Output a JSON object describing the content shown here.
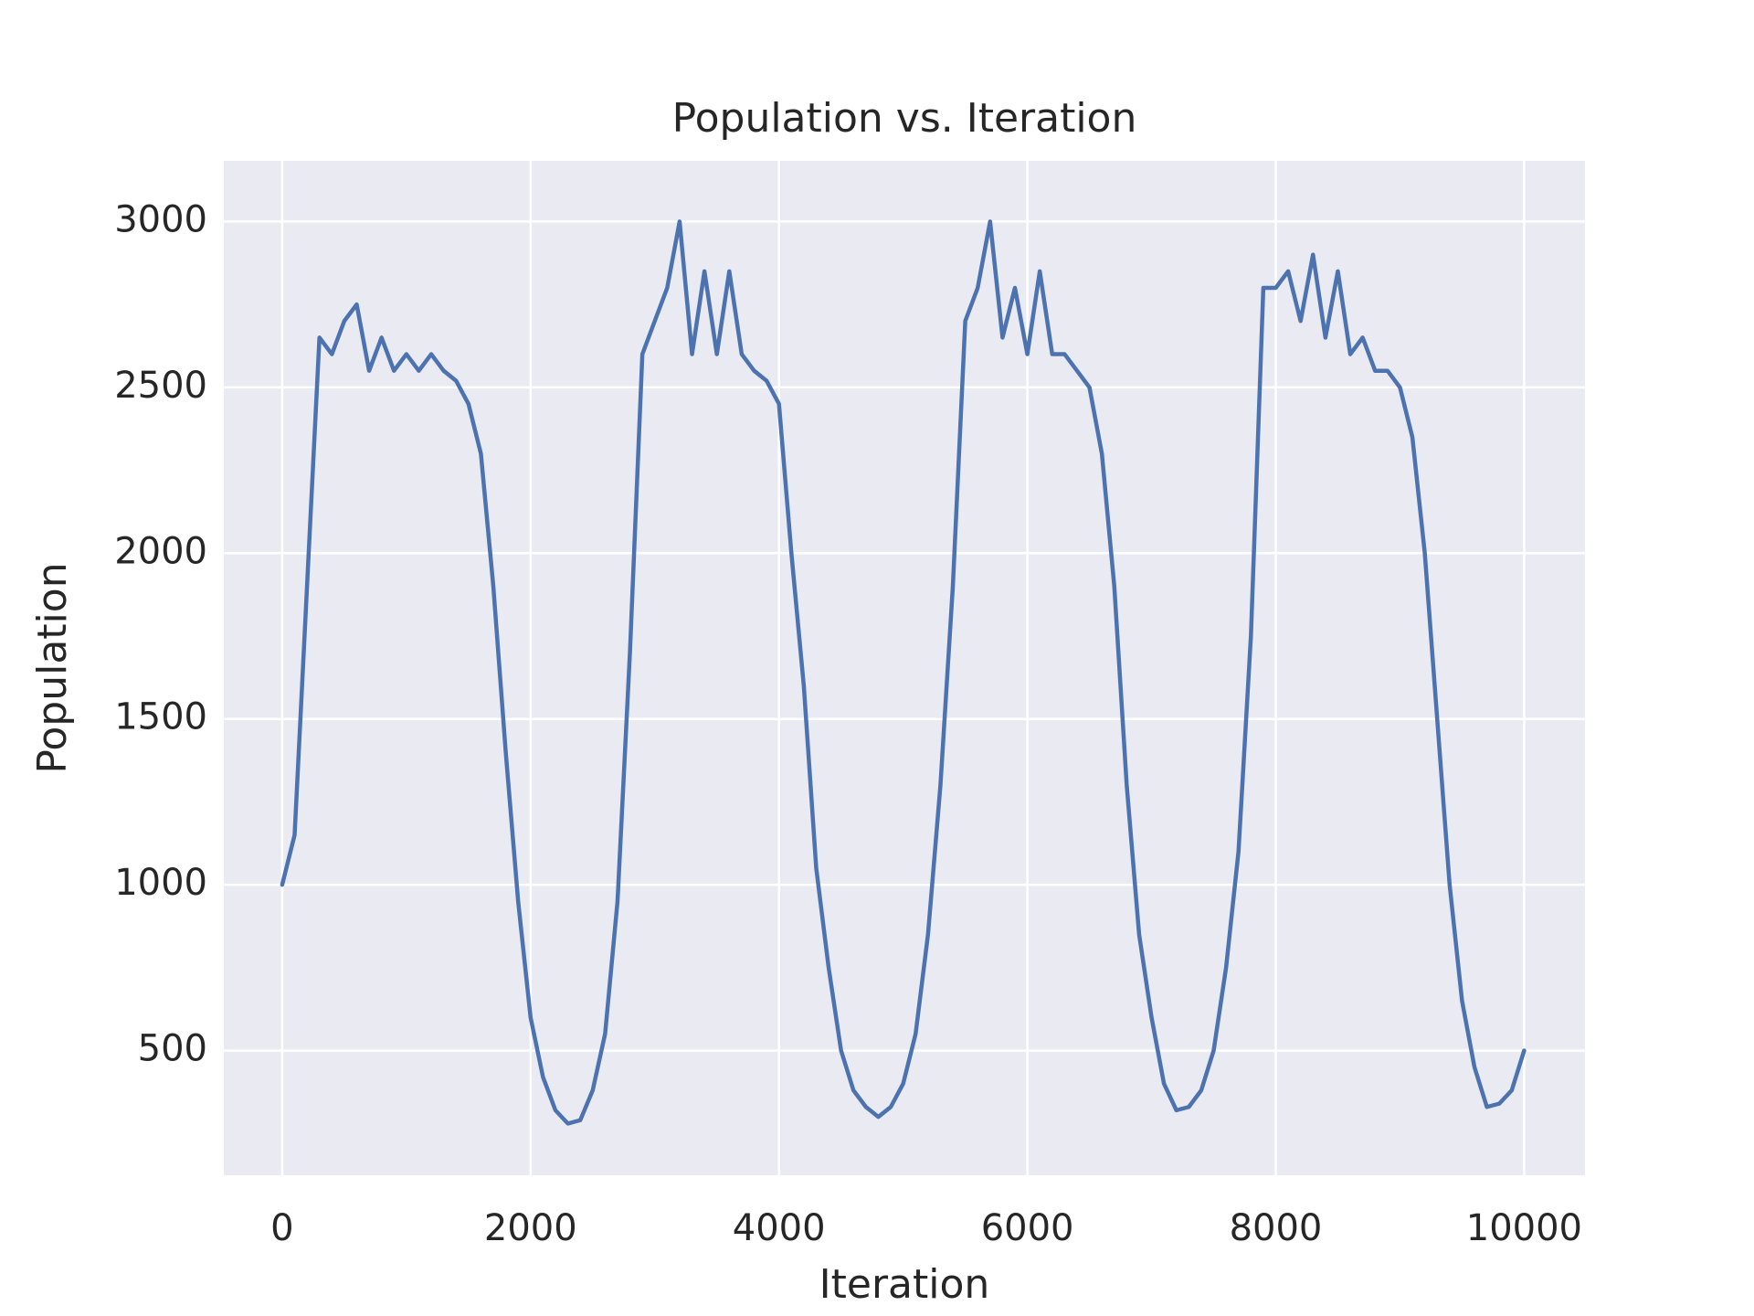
{
  "chart_data": {
    "type": "line",
    "title": "Population vs. Iteration",
    "xlabel": "Iteration",
    "ylabel": "Population",
    "color": "#4c72b0",
    "grid": true,
    "xlim": [
      -470,
      10490
    ],
    "ylim": [
      124,
      3183
    ],
    "xticks": [
      0,
      2000,
      4000,
      6000,
      8000,
      10000
    ],
    "yticks": [
      500,
      1000,
      1500,
      2000,
      2500,
      3000
    ],
    "x": [
      0,
      100,
      200,
      300,
      400,
      500,
      600,
      700,
      800,
      900,
      1000,
      1100,
      1200,
      1300,
      1400,
      1500,
      1600,
      1700,
      1800,
      1900,
      2000,
      2100,
      2200,
      2300,
      2400,
      2500,
      2600,
      2700,
      2800,
      2900,
      3000,
      3100,
      3200,
      3300,
      3400,
      3500,
      3600,
      3700,
      3800,
      3900,
      4000,
      4100,
      4200,
      4300,
      4400,
      4500,
      4600,
      4700,
      4800,
      4900,
      5000,
      5100,
      5200,
      5300,
      5400,
      5500,
      5600,
      5700,
      5800,
      5900,
      6000,
      6100,
      6200,
      6300,
      6400,
      6500,
      6600,
      6700,
      6800,
      6900,
      7000,
      7100,
      7200,
      7300,
      7400,
      7500,
      7600,
      7700,
      7800,
      7900,
      8000,
      8100,
      8200,
      8300,
      8400,
      8500,
      8600,
      8700,
      8800,
      8900,
      9000,
      9100,
      9200,
      9300,
      9400,
      9500,
      9600,
      9700,
      9800,
      9900,
      10000
    ],
    "values": [
      1000,
      1150,
      1900,
      2650,
      2600,
      2700,
      2750,
      2550,
      2650,
      2550,
      2600,
      2550,
      2600,
      2550,
      2520,
      2450,
      2300,
      1900,
      1400,
      950,
      600,
      420,
      320,
      280,
      290,
      380,
      550,
      950,
      1700,
      2600,
      2700,
      2800,
      3000,
      2600,
      2850,
      2600,
      2850,
      2600,
      2550,
      2520,
      2450,
      2000,
      1600,
      1050,
      750,
      500,
      380,
      330,
      300,
      330,
      400,
      550,
      850,
      1300,
      1900,
      2700,
      2800,
      3000,
      2650,
      2800,
      2600,
      2850,
      2600,
      2600,
      2550,
      2500,
      2300,
      1900,
      1300,
      850,
      600,
      400,
      320,
      330,
      380,
      500,
      750,
      1100,
      1750,
      2800,
      2800,
      2850,
      2700,
      2900,
      2650,
      2850,
      2600,
      2650,
      2550,
      2550,
      2500,
      2350,
      2000,
      1500,
      1000,
      650,
      450,
      330,
      340,
      380,
      500
    ]
  }
}
